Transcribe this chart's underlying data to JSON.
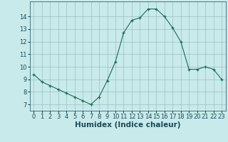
{
  "x": [
    0,
    1,
    2,
    3,
    4,
    5,
    6,
    7,
    8,
    9,
    10,
    11,
    12,
    13,
    14,
    15,
    16,
    17,
    18,
    19,
    20,
    21,
    22,
    23
  ],
  "y": [
    9.4,
    8.8,
    8.5,
    8.2,
    7.9,
    7.6,
    7.3,
    7.0,
    7.6,
    8.9,
    10.4,
    12.7,
    13.7,
    13.9,
    14.6,
    14.6,
    14.0,
    13.1,
    12.0,
    9.8,
    9.8,
    10.0,
    9.8,
    9.0
  ],
  "xlabel": "Humidex (Indice chaleur)",
  "xlim": [
    -0.5,
    23.5
  ],
  "ylim": [
    6.5,
    15.2
  ],
  "yticks": [
    7,
    8,
    9,
    10,
    11,
    12,
    13,
    14
  ],
  "xticks": [
    0,
    1,
    2,
    3,
    4,
    5,
    6,
    7,
    8,
    9,
    10,
    11,
    12,
    13,
    14,
    15,
    16,
    17,
    18,
    19,
    20,
    21,
    22,
    23
  ],
  "line_color": "#1a6b5a",
  "marker": "+",
  "bg_color": "#c8eaea",
  "grid_color": "#9bbfbf",
  "tick_label_fontsize": 6.0,
  "xlabel_fontsize": 7.5,
  "xlabel_color": "#1a4a5a"
}
